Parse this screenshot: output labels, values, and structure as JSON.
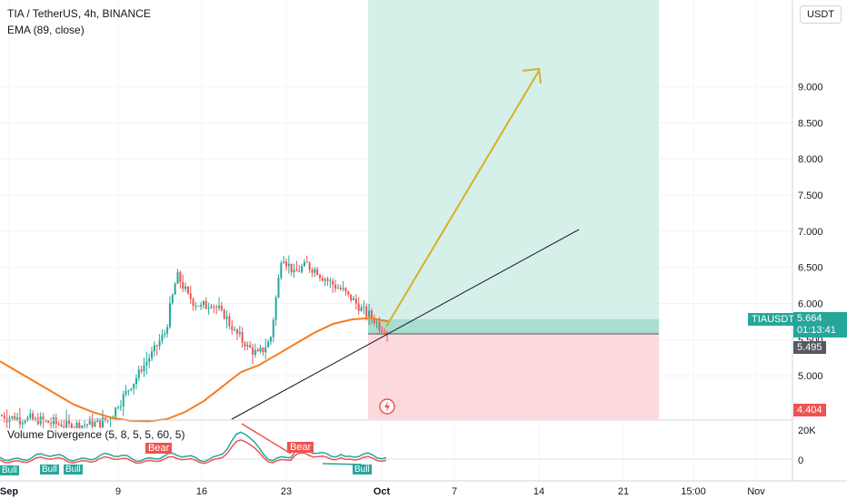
{
  "header": {
    "title": "TIA / TetherUS, 4h, BINANCE",
    "indicator": "EMA (89, close)"
  },
  "currency_button": "USDT",
  "sub_indicator": {
    "label": "Volume Divergence (5, 8, 5, 5, 60, 5)",
    "axis_ticks": [
      "20K",
      "0"
    ],
    "tags": [
      "Bear",
      "Bear",
      "Bull",
      "Bull",
      "Bull",
      "Bull"
    ]
  },
  "price_labels": {
    "symbol": "TIAUSDT",
    "last_price": "5.664",
    "countdown": "01:13:41",
    "entry": "5.495",
    "stop": "4.404"
  },
  "colors": {
    "up": "#26a69a",
    "down": "#ef5350",
    "ema": "#f57c1f",
    "target_zone": "#d5efe9",
    "stop_zone": "#fbd9dc",
    "arrow": "#d4b12b",
    "trendline": "#131722"
  },
  "chart_data": {
    "type": "candlestick",
    "symbol": "TIA / TetherUS",
    "timeframe": "4h",
    "exchange": "BINANCE",
    "y_axis_ticks": [
      "9.000",
      "8.500",
      "8.000",
      "7.500",
      "7.000",
      "6.500",
      "6.000",
      "5.500",
      "5.000"
    ],
    "ylim": [
      4.4,
      10.2
    ],
    "x_axis_ticks": [
      "Sep",
      "9",
      "16",
      "23",
      "Oct",
      "7",
      "14",
      "21",
      "15:00",
      "Nov"
    ],
    "close_path": [
      4.45,
      4.42,
      4.4,
      4.38,
      4.35,
      4.33,
      4.3,
      4.32,
      4.35,
      4.38,
      4.6,
      4.85,
      5.1,
      5.35,
      5.6,
      6.4,
      6.1,
      5.95,
      6.0,
      5.85,
      5.6,
      5.4,
      5.3,
      5.5,
      6.7,
      6.4,
      6.55,
      6.45,
      6.3,
      6.2,
      6.05,
      5.9,
      5.75,
      5.6
    ],
    "ema89_path": [
      5.2,
      5.05,
      4.9,
      4.75,
      4.6,
      4.5,
      4.42,
      4.38,
      4.37,
      4.4,
      4.5,
      4.65,
      4.85,
      5.05,
      5.15,
      5.3,
      5.45,
      5.6,
      5.72,
      5.78,
      5.8,
      5.75
    ],
    "last_price": 5.664,
    "position": {
      "entry": 5.495,
      "stop": 4.404,
      "target_top_approx": 10.2
    },
    "sub_series": {
      "name": "Volume Divergence (5, 8, 5, 5, 60, 5)",
      "ylim": [
        -5000,
        20000
      ]
    }
  }
}
